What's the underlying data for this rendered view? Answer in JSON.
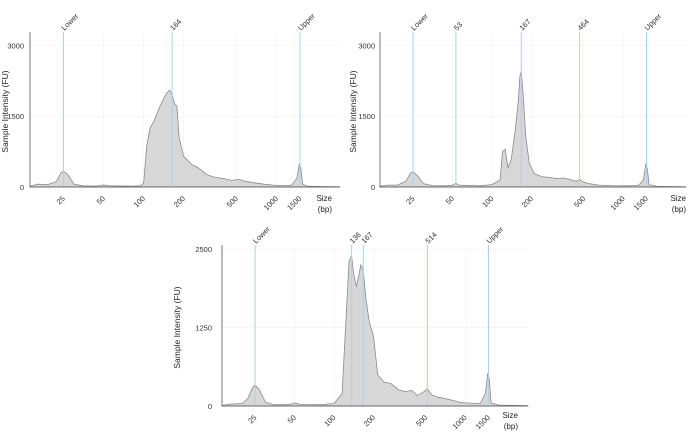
{
  "chart_data": [
    {
      "type": "area",
      "y_label": "Sample Intensity (FU)",
      "x_label_line1": "Size",
      "x_label_line2": "(bp)",
      "y_ticks": [
        "0",
        "1500",
        "3000"
      ],
      "y_tick_values": [
        0,
        1500,
        3000
      ],
      "ylim": [
        0,
        3200
      ],
      "x_ticks": [
        "25",
        "50",
        "100",
        "200",
        "500",
        "1000",
        "1500"
      ],
      "x_tick_values": [
        25,
        50,
        100,
        200,
        500,
        1000,
        1500
      ],
      "xlim": [
        14,
        3000
      ],
      "peaks": [
        {
          "label": "Lower",
          "size": 25
        },
        {
          "label": "164",
          "size": 164
        },
        {
          "label": "Upper",
          "size": 1500
        }
      ],
      "trace": [
        [
          14,
          15
        ],
        [
          16,
          60
        ],
        [
          19,
          50
        ],
        [
          22,
          110
        ],
        [
          24,
          300
        ],
        [
          25,
          330
        ],
        [
          27,
          260
        ],
        [
          30,
          60
        ],
        [
          35,
          25
        ],
        [
          45,
          20
        ],
        [
          50,
          45
        ],
        [
          55,
          25
        ],
        [
          80,
          20
        ],
        [
          95,
          25
        ],
        [
          100,
          80
        ],
        [
          106,
          900
        ],
        [
          112,
          1250
        ],
        [
          120,
          1400
        ],
        [
          130,
          1650
        ],
        [
          140,
          1850
        ],
        [
          150,
          2000
        ],
        [
          157,
          2050
        ],
        [
          164,
          1950
        ],
        [
          172,
          1750
        ],
        [
          178,
          1720
        ],
        [
          185,
          1050
        ],
        [
          200,
          650
        ],
        [
          230,
          480
        ],
        [
          260,
          400
        ],
        [
          300,
          260
        ],
        [
          340,
          210
        ],
        [
          400,
          180
        ],
        [
          460,
          140
        ],
        [
          520,
          160
        ],
        [
          580,
          120
        ],
        [
          680,
          90
        ],
        [
          800,
          60
        ],
        [
          950,
          40
        ],
        [
          1100,
          30
        ],
        [
          1300,
          40
        ],
        [
          1420,
          180
        ],
        [
          1480,
          480
        ],
        [
          1520,
          420
        ],
        [
          1570,
          60
        ],
        [
          1700,
          20
        ],
        [
          2200,
          10
        ],
        [
          3000,
          5
        ]
      ]
    },
    {
      "type": "area",
      "y_label": "Sample Intensity (FU)",
      "x_label_line1": "Size",
      "x_label_line2": "(bp)",
      "y_ticks": [
        "0",
        "1500",
        "3000"
      ],
      "y_tick_values": [
        0,
        1500,
        3000
      ],
      "ylim": [
        0,
        3200
      ],
      "x_ticks": [
        "25",
        "50",
        "100",
        "200",
        "500",
        "1000",
        "1500"
      ],
      "x_tick_values": [
        25,
        50,
        100,
        200,
        500,
        1000,
        1500
      ],
      "xlim": [
        14,
        3000
      ],
      "peaks": [
        {
          "label": "Lower",
          "size": 25
        },
        {
          "label": "53",
          "size": 53
        },
        {
          "label": "167",
          "size": 167
        },
        {
          "label": "464",
          "size": 464
        },
        {
          "label": "Upper",
          "size": 1500
        }
      ],
      "trace": [
        [
          14,
          15
        ],
        [
          16,
          40
        ],
        [
          19,
          40
        ],
        [
          22,
          120
        ],
        [
          24,
          300
        ],
        [
          25,
          320
        ],
        [
          27,
          240
        ],
        [
          30,
          70
        ],
        [
          35,
          30
        ],
        [
          45,
          25
        ],
        [
          50,
          40
        ],
        [
          53,
          80
        ],
        [
          56,
          40
        ],
        [
          80,
          25
        ],
        [
          100,
          50
        ],
        [
          115,
          150
        ],
        [
          120,
          750
        ],
        [
          126,
          800
        ],
        [
          132,
          400
        ],
        [
          140,
          600
        ],
        [
          150,
          1200
        ],
        [
          158,
          1800
        ],
        [
          163,
          2350
        ],
        [
          167,
          2450
        ],
        [
          172,
          2000
        ],
        [
          180,
          1100
        ],
        [
          192,
          500
        ],
        [
          210,
          280
        ],
        [
          240,
          220
        ],
        [
          280,
          200
        ],
        [
          310,
          180
        ],
        [
          350,
          190
        ],
        [
          400,
          150
        ],
        [
          440,
          120
        ],
        [
          464,
          160
        ],
        [
          490,
          110
        ],
        [
          550,
          70
        ],
        [
          650,
          40
        ],
        [
          800,
          30
        ],
        [
          1000,
          25
        ],
        [
          1300,
          30
        ],
        [
          1420,
          150
        ],
        [
          1480,
          480
        ],
        [
          1520,
          400
        ],
        [
          1570,
          50
        ],
        [
          1800,
          15
        ],
        [
          3000,
          5
        ]
      ]
    },
    {
      "type": "area",
      "y_label": "Sample Intensity (FU)",
      "x_label_line1": "Size",
      "x_label_line2": "(bp)",
      "y_ticks": [
        "0",
        "1250",
        "2500"
      ],
      "y_tick_values": [
        0,
        1250,
        2500
      ],
      "ylim": [
        0,
        2500
      ],
      "x_ticks": [
        "25",
        "50",
        "100",
        "200",
        "500",
        "1000",
        "1500"
      ],
      "x_tick_values": [
        25,
        50,
        100,
        200,
        500,
        1000,
        1500
      ],
      "xlim": [
        14,
        3000
      ],
      "peaks": [
        {
          "label": "Lower",
          "size": 25
        },
        {
          "label": "136",
          "size": 136
        },
        {
          "label": "167",
          "size": 167
        },
        {
          "label": "514",
          "size": 514
        },
        {
          "label": "Upper",
          "size": 1500
        }
      ],
      "trace": [
        [
          14,
          10
        ],
        [
          16,
          30
        ],
        [
          20,
          40
        ],
        [
          22,
          120
        ],
        [
          24,
          300
        ],
        [
          25,
          330
        ],
        [
          27,
          260
        ],
        [
          30,
          60
        ],
        [
          35,
          20
        ],
        [
          45,
          20
        ],
        [
          50,
          50
        ],
        [
          55,
          25
        ],
        [
          80,
          20
        ],
        [
          100,
          40
        ],
        [
          115,
          200
        ],
        [
          122,
          1200
        ],
        [
          130,
          2300
        ],
        [
          136,
          2400
        ],
        [
          141,
          2100
        ],
        [
          148,
          1900
        ],
        [
          155,
          2100
        ],
        [
          160,
          2250
        ],
        [
          167,
          2150
        ],
        [
          175,
          1700
        ],
        [
          185,
          1350
        ],
        [
          200,
          1100
        ],
        [
          215,
          500
        ],
        [
          240,
          380
        ],
        [
          270,
          360
        ],
        [
          310,
          260
        ],
        [
          350,
          230
        ],
        [
          390,
          250
        ],
        [
          430,
          170
        ],
        [
          470,
          210
        ],
        [
          514,
          270
        ],
        [
          560,
          170
        ],
        [
          620,
          140
        ],
        [
          700,
          120
        ],
        [
          800,
          90
        ],
        [
          900,
          60
        ],
        [
          1000,
          50
        ],
        [
          1300,
          40
        ],
        [
          1420,
          200
        ],
        [
          1480,
          520
        ],
        [
          1520,
          440
        ],
        [
          1570,
          50
        ],
        [
          1800,
          15
        ],
        [
          3000,
          5
        ]
      ]
    }
  ]
}
